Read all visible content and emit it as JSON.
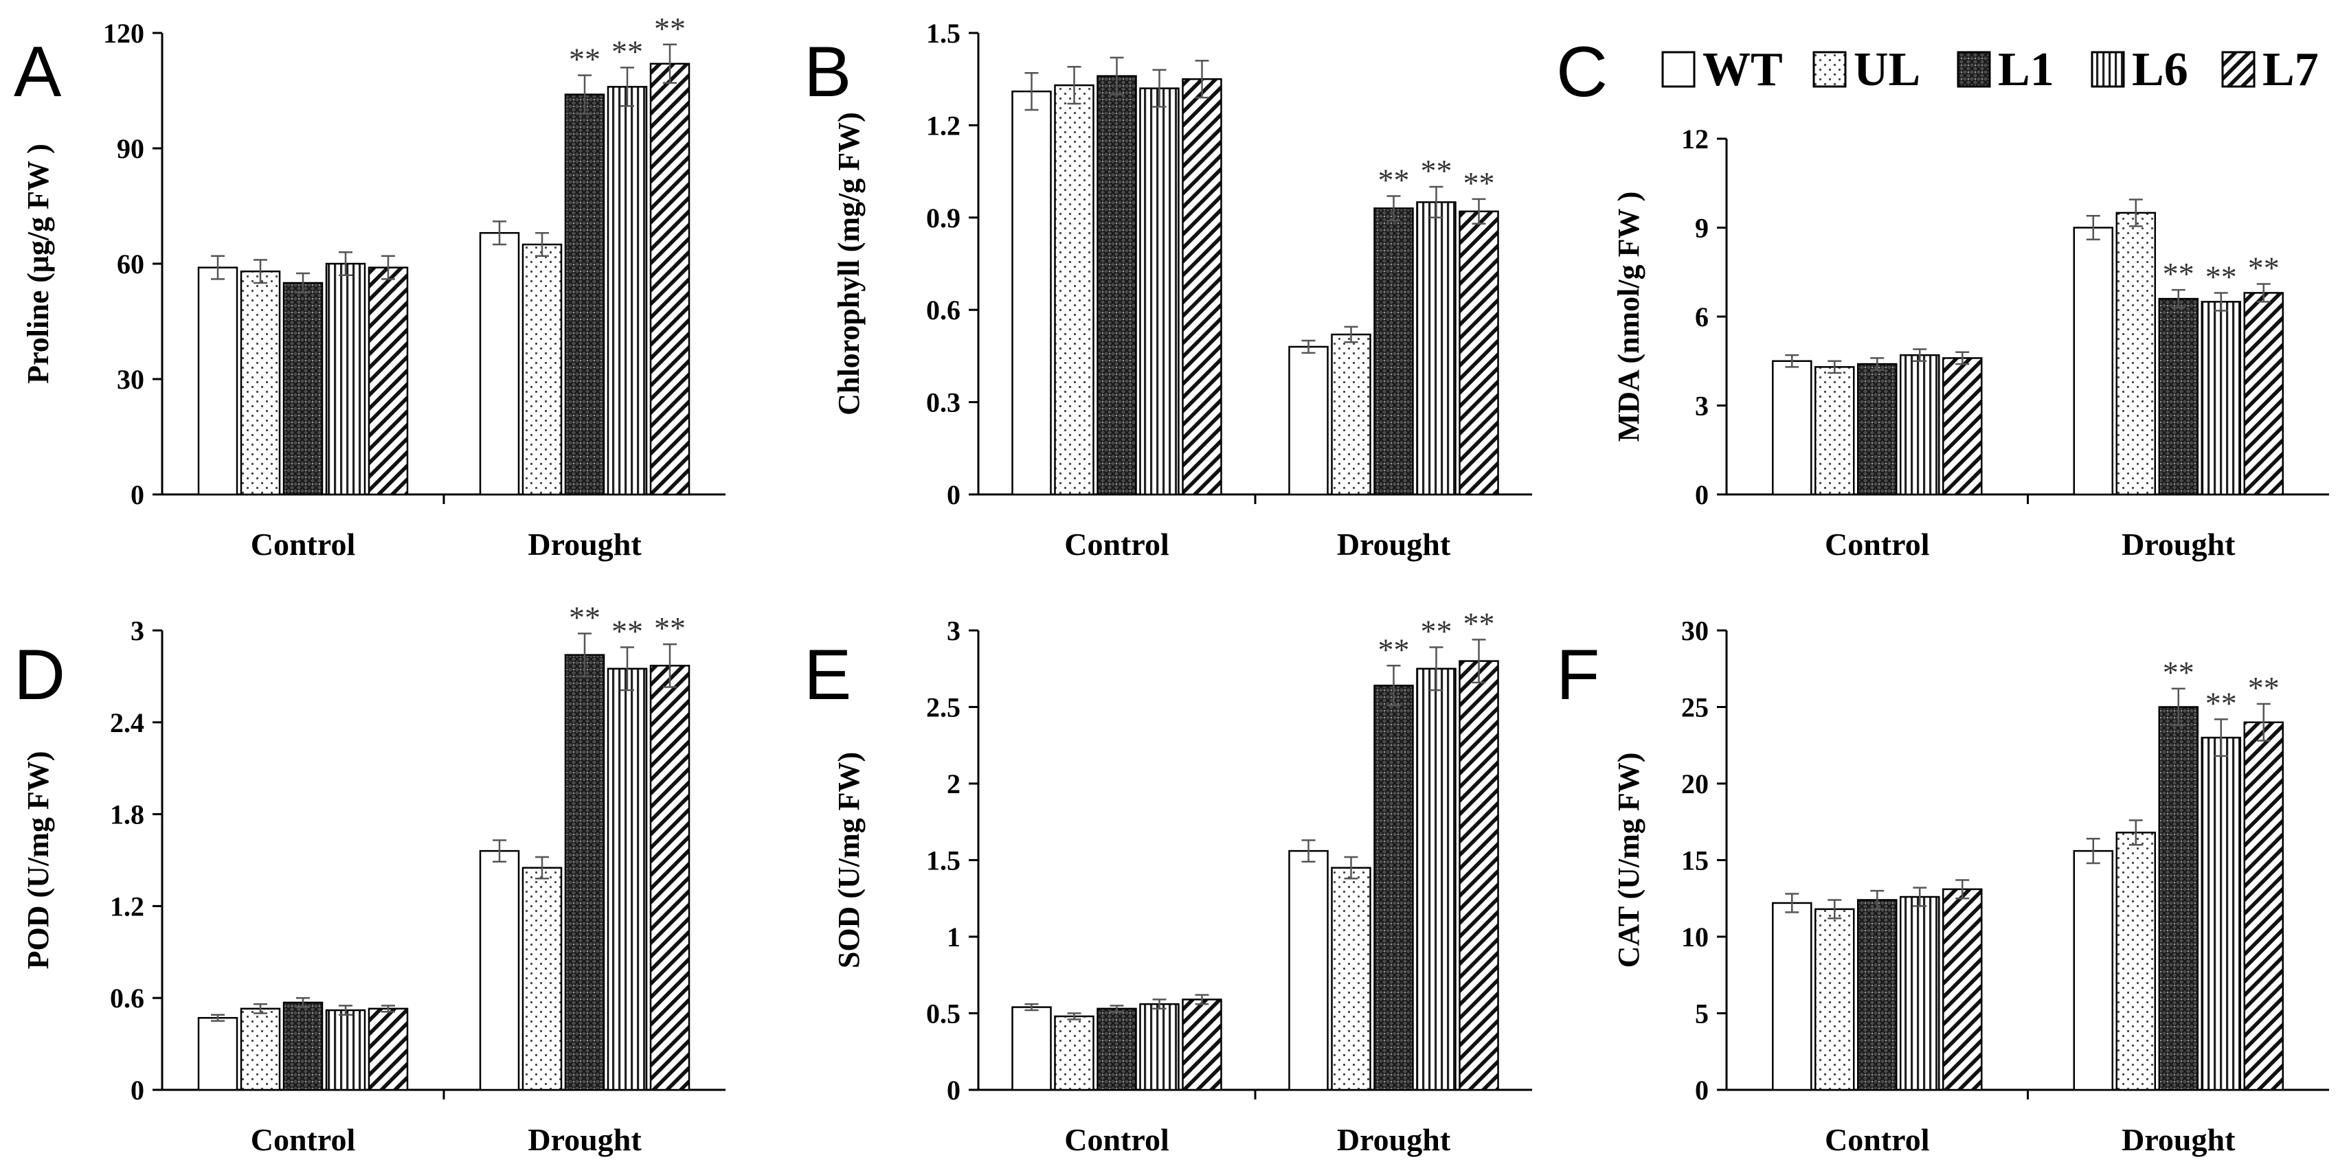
{
  "legend": {
    "items": [
      {
        "label": "WT",
        "pattern": "blank"
      },
      {
        "label": "UL",
        "pattern": "dots"
      },
      {
        "label": "L1",
        "pattern": "cross"
      },
      {
        "label": "L6",
        "pattern": "vert"
      },
      {
        "label": "L7",
        "pattern": "diag"
      }
    ]
  },
  "chart_data": [
    {
      "letter": "A",
      "type": "bar",
      "categories": [
        "Control",
        "Drought"
      ],
      "ylabel": "Proline (μg/g FW )",
      "yticks": [
        "0",
        "30",
        "60",
        "90",
        "120"
      ],
      "ylim": [
        0,
        120
      ],
      "series": [
        {
          "name": "WT",
          "values": [
            59,
            68
          ],
          "errors": [
            3,
            3
          ]
        },
        {
          "name": "UL",
          "values": [
            58,
            65
          ],
          "errors": [
            3,
            3
          ]
        },
        {
          "name": "L1",
          "values": [
            55,
            104
          ],
          "errors": [
            2.5,
            5
          ]
        },
        {
          "name": "L6",
          "values": [
            60,
            106
          ],
          "errors": [
            3,
            5
          ]
        },
        {
          "name": "L7",
          "values": [
            59,
            112
          ],
          "errors": [
            3,
            5
          ]
        }
      ],
      "significance": [
        [
          "",
          ""
        ],
        [
          "",
          ""
        ],
        [
          "",
          "**"
        ],
        [
          "",
          "**"
        ],
        [
          "",
          "**"
        ]
      ]
    },
    {
      "letter": "B",
      "type": "bar",
      "categories": [
        "Control",
        "Drought"
      ],
      "ylabel": "Chlorophyll (mg/g FW)",
      "yticks": [
        "0",
        "0.3",
        "0.6",
        "0.9",
        "1.2",
        "1.5"
      ],
      "ylim": [
        0,
        1.5
      ],
      "series": [
        {
          "name": "WT",
          "values": [
            1.31,
            0.48
          ],
          "errors": [
            0.06,
            0.02
          ]
        },
        {
          "name": "UL",
          "values": [
            1.33,
            0.52
          ],
          "errors": [
            0.06,
            0.025
          ]
        },
        {
          "name": "L1",
          "values": [
            1.36,
            0.93
          ],
          "errors": [
            0.06,
            0.04
          ]
        },
        {
          "name": "L6",
          "values": [
            1.32,
            0.95
          ],
          "errors": [
            0.06,
            0.05
          ]
        },
        {
          "name": "L7",
          "values": [
            1.35,
            0.92
          ],
          "errors": [
            0.06,
            0.04
          ]
        }
      ],
      "significance": [
        [
          "",
          ""
        ],
        [
          "",
          ""
        ],
        [
          "",
          "**"
        ],
        [
          "",
          "**"
        ],
        [
          "",
          "**"
        ]
      ]
    },
    {
      "letter": "C",
      "type": "bar",
      "categories": [
        "Control",
        "Drought"
      ],
      "ylabel": "MDA (nmol/g FW )",
      "yticks": [
        "0",
        "3",
        "6",
        "9",
        "12"
      ],
      "ylim": [
        0,
        12
      ],
      "series": [
        {
          "name": "WT",
          "values": [
            4.5,
            9.0
          ],
          "errors": [
            0.2,
            0.4
          ]
        },
        {
          "name": "UL",
          "values": [
            4.3,
            9.5
          ],
          "errors": [
            0.2,
            0.45
          ]
        },
        {
          "name": "L1",
          "values": [
            4.4,
            6.6
          ],
          "errors": [
            0.2,
            0.3
          ]
        },
        {
          "name": "L6",
          "values": [
            4.7,
            6.5
          ],
          "errors": [
            0.2,
            0.3
          ]
        },
        {
          "name": "L7",
          "values": [
            4.6,
            6.8
          ],
          "errors": [
            0.2,
            0.3
          ]
        }
      ],
      "significance": [
        [
          "",
          ""
        ],
        [
          "",
          ""
        ],
        [
          "",
          "**"
        ],
        [
          "",
          "**"
        ],
        [
          "",
          "**"
        ]
      ]
    },
    {
      "letter": "D",
      "type": "bar",
      "categories": [
        "Control",
        "Drought"
      ],
      "ylabel": "POD (U/mg FW)",
      "yticks": [
        "0",
        "0.6",
        "1.2",
        "1.8",
        "2.4",
        "3"
      ],
      "ylim": [
        0,
        3
      ],
      "series": [
        {
          "name": "WT",
          "values": [
            0.47,
            1.56
          ],
          "errors": [
            0.02,
            0.07
          ]
        },
        {
          "name": "UL",
          "values": [
            0.53,
            1.45
          ],
          "errors": [
            0.03,
            0.07
          ]
        },
        {
          "name": "L1",
          "values": [
            0.57,
            2.84
          ],
          "errors": [
            0.03,
            0.14
          ]
        },
        {
          "name": "L6",
          "values": [
            0.52,
            2.75
          ],
          "errors": [
            0.03,
            0.14
          ]
        },
        {
          "name": "L7",
          "values": [
            0.53,
            2.77
          ],
          "errors": [
            0.02,
            0.14
          ]
        }
      ],
      "significance": [
        [
          "",
          ""
        ],
        [
          "",
          ""
        ],
        [
          "",
          "**"
        ],
        [
          "",
          "**"
        ],
        [
          "",
          "**"
        ]
      ]
    },
    {
      "letter": "E",
      "type": "bar",
      "categories": [
        "Control",
        "Drought"
      ],
      "ylabel": "SOD (U/mg FW)",
      "yticks": [
        "0",
        "0.5",
        "1",
        "1.5",
        "2",
        "2.5",
        "3"
      ],
      "ylim": [
        0,
        3
      ],
      "series": [
        {
          "name": "WT",
          "values": [
            0.54,
            1.56
          ],
          "errors": [
            0.02,
            0.07
          ]
        },
        {
          "name": "UL",
          "values": [
            0.48,
            1.45
          ],
          "errors": [
            0.02,
            0.07
          ]
        },
        {
          "name": "L1",
          "values": [
            0.53,
            2.64
          ],
          "errors": [
            0.02,
            0.13
          ]
        },
        {
          "name": "L6",
          "values": [
            0.56,
            2.75
          ],
          "errors": [
            0.03,
            0.14
          ]
        },
        {
          "name": "L7",
          "values": [
            0.59,
            2.8
          ],
          "errors": [
            0.03,
            0.14
          ]
        }
      ],
      "significance": [
        [
          "",
          ""
        ],
        [
          "",
          ""
        ],
        [
          "",
          "**"
        ],
        [
          "",
          "**"
        ],
        [
          "",
          "**"
        ]
      ]
    },
    {
      "letter": "F",
      "type": "bar",
      "categories": [
        "Control",
        "Drought"
      ],
      "ylabel": "CAT (U/mg FW)",
      "yticks": [
        "0",
        "5",
        "10",
        "15",
        "20",
        "25",
        "30"
      ],
      "ylim": [
        0,
        30
      ],
      "series": [
        {
          "name": "WT",
          "values": [
            12.2,
            15.6
          ],
          "errors": [
            0.6,
            0.8
          ]
        },
        {
          "name": "UL",
          "values": [
            11.8,
            16.8
          ],
          "errors": [
            0.6,
            0.8
          ]
        },
        {
          "name": "L1",
          "values": [
            12.4,
            25.0
          ],
          "errors": [
            0.6,
            1.2
          ]
        },
        {
          "name": "L6",
          "values": [
            12.6,
            23.0
          ],
          "errors": [
            0.6,
            1.2
          ]
        },
        {
          "name": "L7",
          "values": [
            13.1,
            24.0
          ],
          "errors": [
            0.6,
            1.2
          ]
        }
      ],
      "significance": [
        [
          "",
          ""
        ],
        [
          "",
          ""
        ],
        [
          "",
          "**"
        ],
        [
          "",
          "**"
        ],
        [
          "",
          "**"
        ]
      ]
    }
  ]
}
